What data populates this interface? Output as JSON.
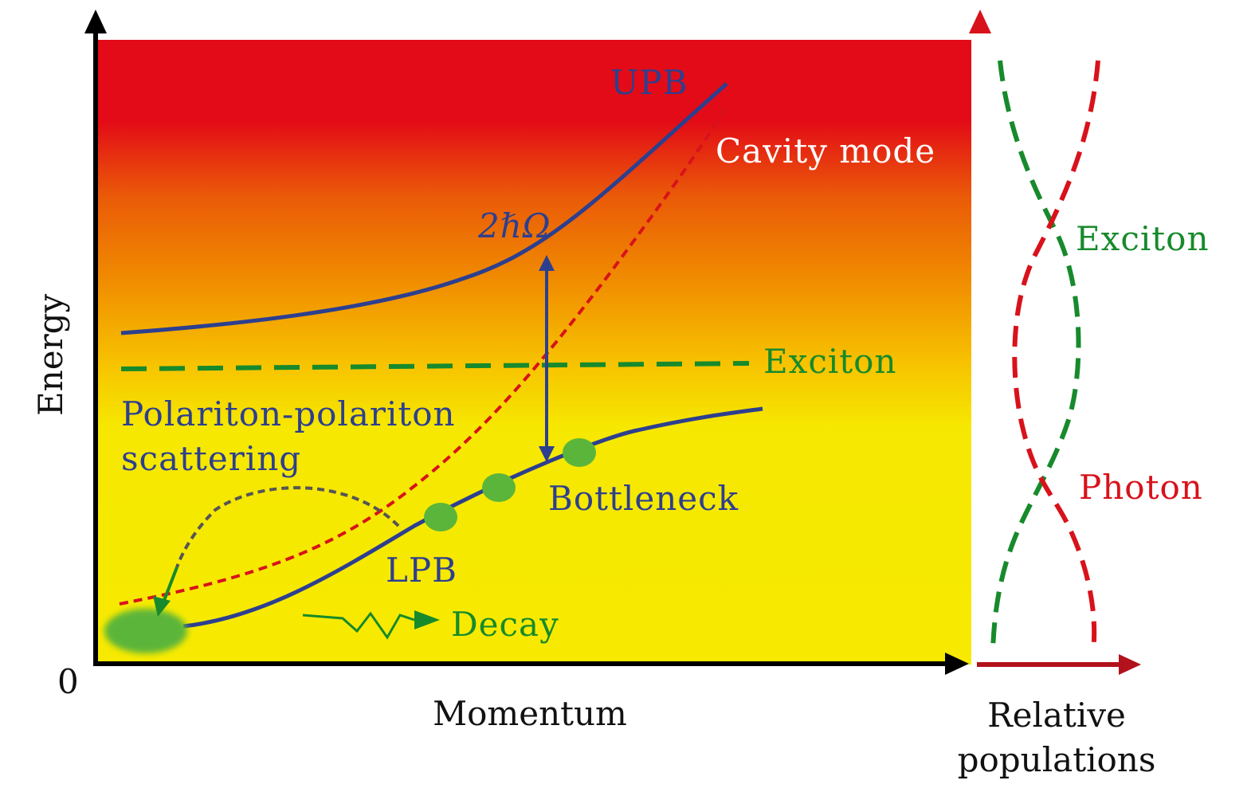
{
  "colors": {
    "background_top": "#e30b17",
    "background_mid": "#f08a00",
    "background_bottom": "#f6e800",
    "polariton_branch": "#2d3f8f",
    "exciton": "#178a2c",
    "photon": "#d8121b",
    "axis": "#000000",
    "population_axis": "#b2121b",
    "scatter_arrow": "#555555",
    "population_dot": "#5bb53a"
  },
  "labels": {
    "upb": "UPB",
    "cavity_mode": "Cavity mode",
    "rabi_splitting": "2ℏΩ",
    "exciton": "Exciton",
    "scattering_line1": "Polariton-polariton",
    "scattering_line2": "scattering",
    "bottleneck": "Bottleneck",
    "lpb": "LPB",
    "decay": "Decay",
    "population_exciton": "Exciton",
    "population_photon": "Photon"
  },
  "axes": {
    "y_label": "Energy",
    "x_label": "Momentum",
    "origin": "0",
    "population_label_line1": "Relative",
    "population_label_line2": "populations"
  }
}
